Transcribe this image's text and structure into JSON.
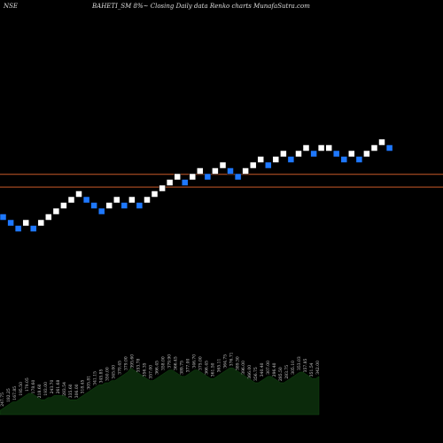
{
  "header": {
    "exchange": "NSE",
    "title": "BAHETI_SM 8%~ Closing Daily data Renko charts MunafaSutra.com"
  },
  "colors": {
    "background": "#000000",
    "up_brick": "#ffffff",
    "down_brick": "#1e78ff",
    "level_line": "#c85a28",
    "volume_fill": "#0b2a0b",
    "volume_text": "#d0d0d0"
  },
  "chart_data": {
    "type": "renko",
    "brick_direction": [
      "down",
      "down",
      "down",
      "up",
      "down",
      "up",
      "up",
      "up",
      "up",
      "up",
      "up",
      "down",
      "down",
      "down",
      "up",
      "up",
      "down",
      "up",
      "down",
      "up",
      "up",
      "up",
      "up",
      "up",
      "down",
      "up",
      "up",
      "down",
      "up",
      "up",
      "down",
      "down",
      "up",
      "up",
      "up",
      "down",
      "up",
      "up",
      "down",
      "up",
      "up",
      "down",
      "up",
      "up",
      "down",
      "down",
      "up",
      "down",
      "up",
      "up",
      "up",
      "down"
    ],
    "brick_level": [
      18.2,
      17.3,
      16.4,
      17.3,
      16.4,
      17.3,
      18.2,
      19.1,
      20.0,
      20.9,
      21.8,
      20.9,
      20.0,
      19.1,
      20.0,
      20.9,
      20.0,
      20.9,
      20.0,
      20.9,
      21.8,
      22.7,
      23.6,
      24.5,
      23.6,
      24.5,
      25.4,
      24.5,
      25.4,
      26.3,
      25.4,
      24.5,
      25.4,
      26.3,
      27.2,
      26.3,
      27.2,
      28.1,
      27.2,
      28.1,
      29.0,
      28.1,
      29.0,
      29.0,
      28.1,
      27.2,
      28.1,
      27.2,
      28.1,
      29.0,
      29.9,
      29.0
    ],
    "horizontal_levels": [
      24.4,
      22.4
    ],
    "volume_labels": [
      "247.75",
      "182.25",
      "167.85",
      "195.50",
      "179.05",
      "178.60",
      "218.60",
      "193.00",
      "243.70",
      "261.68",
      "283.54",
      "335.60",
      "306.00",
      "318.45",
      "305.81",
      "341.15",
      "345.85",
      "350.00",
      "345.00",
      "370.45",
      "379.00",
      "395.60",
      "353.78",
      "356.35",
      "357.00",
      "366.45",
      "358.00",
      "379.90",
      "366.45",
      "389.75",
      "377.00",
      "346.70",
      "375.00",
      "366.45",
      "361.50",
      "365.11",
      "364.75",
      "376.71",
      "389.30",
      "396.00",
      "366.00",
      "356.75",
      "340.40",
      "307.00",
      "296.40",
      "285.50",
      "283.75",
      "305.10",
      "353.03",
      "357.85",
      "351.54",
      "342.00"
    ],
    "volume_profile": [
      2,
      3,
      4,
      5,
      6,
      6,
      7,
      8,
      9,
      10,
      10,
      9,
      8,
      7,
      7,
      8,
      8,
      9,
      9,
      9,
      9,
      8,
      7,
      7,
      7,
      8,
      9,
      10,
      11,
      12,
      13,
      14,
      14,
      15,
      15,
      16,
      16,
      17,
      18,
      19,
      20,
      22,
      21,
      20,
      19,
      18,
      17,
      16,
      16,
      17,
      18,
      19,
      20,
      21,
      21,
      20,
      19,
      18,
      18,
      19,
      20,
      21,
      21,
      20,
      19,
      18,
      17,
      17,
      18,
      19,
      20,
      21,
      22,
      22,
      21,
      20,
      19,
      18,
      17,
      16,
      15,
      15,
      16,
      17,
      18,
      18,
      17,
      16,
      15,
      15,
      16,
      17,
      18,
      19,
      20,
      20,
      19,
      18,
      17,
      17,
      18
    ]
  }
}
